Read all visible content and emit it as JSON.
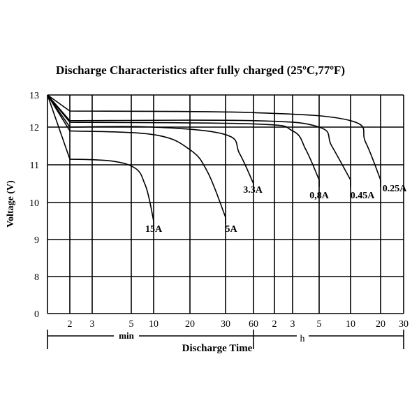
{
  "chart_data": {
    "type": "line",
    "title": "Discharge Characteristics after fully  charged (25ºC,77ºF)",
    "ylabel": "Voltage  (V)",
    "xlabel": "Discharge  Time",
    "ylim": [
      0,
      13
    ],
    "y_ticks": [
      "0",
      "8",
      "9",
      "10",
      "11",
      "12",
      "13"
    ],
    "x_ticks": [
      "2",
      "3",
      "5",
      "10",
      "20",
      "30",
      "60",
      "2",
      "3",
      "5",
      "10",
      "20",
      "30"
    ],
    "x_unit_labels": [
      "min",
      "h"
    ],
    "grid": true,
    "series": [
      {
        "name": "15A",
        "x": [
          "0 min",
          "2 min",
          "4 min",
          "6 min",
          "8 min",
          "9 min",
          "10 min"
        ],
        "y": [
          13.0,
          11.15,
          11.1,
          10.9,
          10.5,
          10.1,
          9.5
        ]
      },
      {
        "name": "5A",
        "x": [
          "0 min",
          "2 min",
          "10 min",
          "20 min",
          "25 min",
          "30 min"
        ],
        "y": [
          13.0,
          11.9,
          11.8,
          11.4,
          10.8,
          9.6
        ]
      },
      {
        "name": "3.3A",
        "x": [
          "0 min",
          "2 min",
          "10 min",
          "30 min",
          "45 min",
          "60 min"
        ],
        "y": [
          13.0,
          12.0,
          12.0,
          11.8,
          11.3,
          10.5
        ]
      },
      {
        "name": "0,8A",
        "x": [
          "0 min",
          "2 min",
          "60 min",
          "3 h",
          "4 h",
          "5 h"
        ],
        "y": [
          13.0,
          12.15,
          12.1,
          11.9,
          11.4,
          10.6
        ]
      },
      {
        "name": "0.45A",
        "x": [
          "0 min",
          "2 min",
          "60 min",
          "5 h",
          "7 h",
          "10 h"
        ],
        "y": [
          13.0,
          12.2,
          12.2,
          12.0,
          11.5,
          10.6
        ]
      },
      {
        "name": "0.25A",
        "x": [
          "0 min",
          "2 min",
          "60 min",
          "10 h",
          "15 h",
          "20 h"
        ],
        "y": [
          13.0,
          12.5,
          12.45,
          12.2,
          11.6,
          10.6
        ]
      }
    ]
  }
}
